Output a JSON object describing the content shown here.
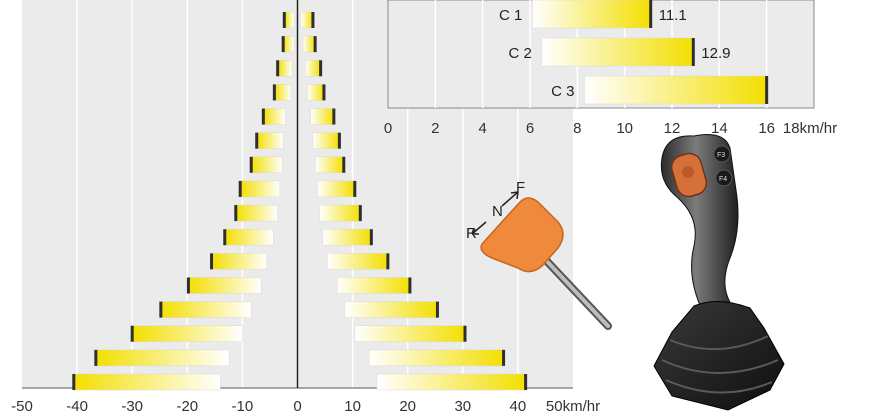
{
  "chart_data": [
    {
      "type": "bar",
      "orientation": "horizontal",
      "x_ticks": [
        "-50",
        "-40",
        "-30",
        "-20",
        "-10",
        "0",
        "10",
        "20",
        "30",
        "40",
        "50km/hr"
      ],
      "xlim": [
        -50,
        50
      ],
      "grid": true,
      "bars_reverse": [
        {
          "start": -2.4,
          "end": -0.6
        },
        {
          "start": -2.6,
          "end": -0.6
        },
        {
          "start": -3.6,
          "end": -1.0
        },
        {
          "start": -4.2,
          "end": -1.2
        },
        {
          "start": -6.2,
          "end": -2.2
        },
        {
          "start": -7.4,
          "end": -2.6
        },
        {
          "start": -8.4,
          "end": -2.8
        },
        {
          "start": -10.4,
          "end": -3.2
        },
        {
          "start": -11.2,
          "end": -3.6
        },
        {
          "start": -13.2,
          "end": -4.4
        },
        {
          "start": -15.6,
          "end": -5.6
        },
        {
          "start": -19.8,
          "end": -6.6
        },
        {
          "start": -24.8,
          "end": -8.4
        },
        {
          "start": -30.0,
          "end": -10.0
        },
        {
          "start": -36.6,
          "end": -12.4
        },
        {
          "start": -40.6,
          "end": -14.0
        }
      ],
      "bars_forward": [
        {
          "start": 0.6,
          "end": 2.8
        },
        {
          "start": 1.0,
          "end": 3.2
        },
        {
          "start": 1.4,
          "end": 4.2
        },
        {
          "start": 1.8,
          "end": 4.8
        },
        {
          "start": 2.4,
          "end": 6.6
        },
        {
          "start": 2.8,
          "end": 7.6
        },
        {
          "start": 3.2,
          "end": 8.4
        },
        {
          "start": 3.6,
          "end": 10.4
        },
        {
          "start": 4.0,
          "end": 11.4
        },
        {
          "start": 4.6,
          "end": 13.4
        },
        {
          "start": 5.4,
          "end": 16.4
        },
        {
          "start": 7.2,
          "end": 20.4
        },
        {
          "start": 8.6,
          "end": 25.4
        },
        {
          "start": 10.4,
          "end": 30.4
        },
        {
          "start": 13.0,
          "end": 37.4
        },
        {
          "start": 14.4,
          "end": 41.4
        }
      ]
    },
    {
      "type": "bar",
      "orientation": "horizontal",
      "categories": [
        "C 1",
        "C 2",
        "C 3"
      ],
      "values": [
        11.1,
        12.9,
        16
      ],
      "value_labels": [
        "11.1",
        "12.9",
        ""
      ],
      "bar_starts": [
        6.1,
        6.5,
        8.3
      ],
      "x_ticks": [
        "0",
        "2",
        "4",
        "6",
        "8",
        "10",
        "12",
        "14",
        "16",
        "18km/hr"
      ],
      "xlim": [
        0,
        18
      ],
      "grid": true
    }
  ],
  "lever": {
    "labels": [
      "F",
      "N",
      "R"
    ]
  },
  "joystick": {
    "labels": [
      "F3",
      "F4"
    ]
  },
  "colors": {
    "bar_start": "#ffffff",
    "bar_end": "#f3df00",
    "bar_edge": "#2f2f2f",
    "panel": "#ebebeb",
    "grid": "#ffffff",
    "lever": "#ef8a3c"
  }
}
